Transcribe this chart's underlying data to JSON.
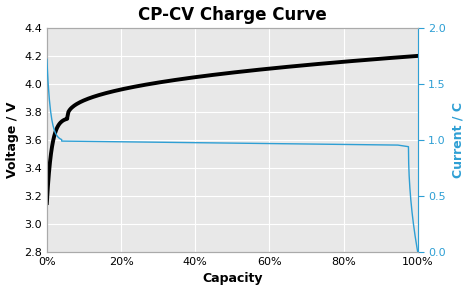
{
  "title": "CP-CV Charge Curve",
  "xlabel": "Capacity",
  "ylabel_left": "Voltage / V",
  "ylabel_right": "Current / C",
  "xlim": [
    0,
    1
  ],
  "ylim_left": [
    2.8,
    4.4
  ],
  "ylim_right": [
    0.0,
    2.0
  ],
  "yticks_left": [
    2.8,
    3.0,
    3.2,
    3.4,
    3.6,
    3.8,
    4.0,
    4.2,
    4.4
  ],
  "yticks_right": [
    0.0,
    0.5,
    1.0,
    1.5,
    2.0
  ],
  "xticks": [
    0,
    0.2,
    0.4,
    0.6,
    0.8,
    1.0
  ],
  "xtick_labels": [
    "0%",
    "20%",
    "40%",
    "60%",
    "80%",
    "100%"
  ],
  "fig_bg_color": "#ffffff",
  "plot_bg_color": "#e8e8e8",
  "voltage_color": "#000000",
  "current_color": "#2e9fd4",
  "right_label_color": "#2e9fd4",
  "title_fontsize": 12,
  "axis_label_fontsize": 9,
  "tick_fontsize": 8
}
